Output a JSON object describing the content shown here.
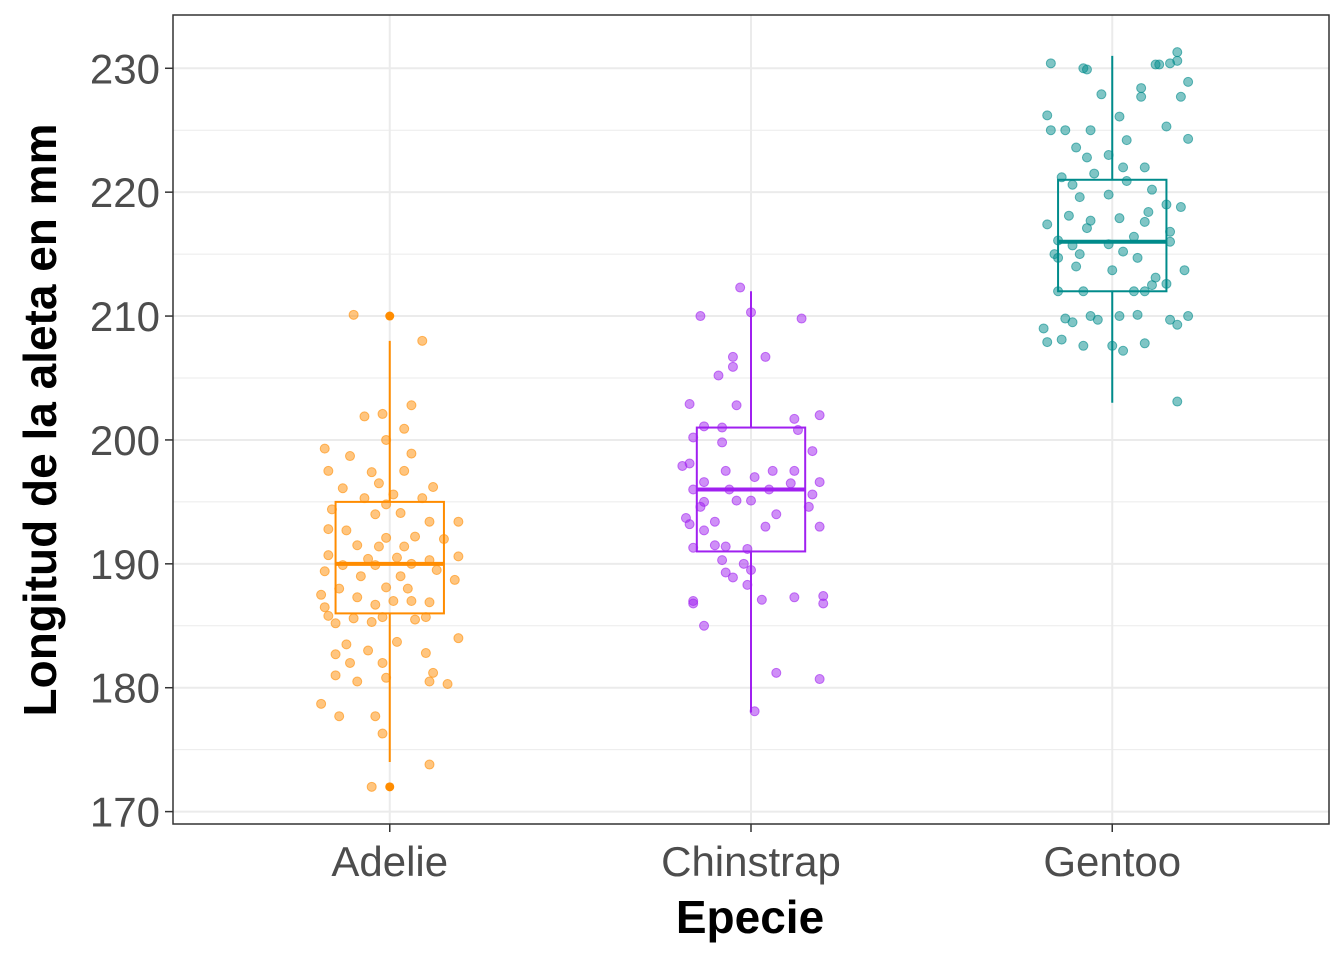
{
  "chart_data": {
    "type": "boxplot",
    "xlabel": "Epecie",
    "ylabel": "Longitud de la aleta en mm",
    "ylim": [
      169,
      234.3
    ],
    "yticks": [
      170,
      180,
      190,
      200,
      210,
      220,
      230
    ],
    "grid": true,
    "categories": [
      "Adelie",
      "Chinstrap",
      "Gentoo"
    ],
    "series": [
      {
        "category": "Adelie",
        "color": "#FF8C00",
        "box": {
          "min": 174,
          "q1": 186,
          "median": 190,
          "q3": 195,
          "max": 208
        },
        "outliers": [
          210,
          172
        ],
        "points": [
          [
            -0.1,
            210.1
          ],
          [
            0.09,
            208.0
          ],
          [
            0.06,
            202.8
          ],
          [
            -0.02,
            202.1
          ],
          [
            -0.07,
            201.9
          ],
          [
            0.04,
            200.9
          ],
          [
            -0.01,
            200.0
          ],
          [
            -0.18,
            199.3
          ],
          [
            0.06,
            198.9
          ],
          [
            -0.11,
            198.7
          ],
          [
            -0.17,
            197.5
          ],
          [
            -0.05,
            197.4
          ],
          [
            0.04,
            197.5
          ],
          [
            -0.13,
            196.1
          ],
          [
            -0.03,
            196.5
          ],
          [
            0.01,
            195.6
          ],
          [
            0.12,
            196.2
          ],
          [
            -0.07,
            195.3
          ],
          [
            0.09,
            195.3
          ],
          [
            -0.01,
            194.8
          ],
          [
            -0.16,
            194.4
          ],
          [
            -0.04,
            194.0
          ],
          [
            0.03,
            194.1
          ],
          [
            0.11,
            193.4
          ],
          [
            0.19,
            193.4
          ],
          [
            -0.17,
            192.8
          ],
          [
            -0.12,
            192.7
          ],
          [
            -0.01,
            192.1
          ],
          [
            0.07,
            192.2
          ],
          [
            0.15,
            192.0
          ],
          [
            -0.09,
            191.5
          ],
          [
            -0.03,
            191.4
          ],
          [
            0.04,
            191.4
          ],
          [
            -0.17,
            190.7
          ],
          [
            -0.06,
            190.4
          ],
          [
            0.02,
            190.5
          ],
          [
            0.11,
            190.3
          ],
          [
            0.19,
            190.6
          ],
          [
            -0.13,
            189.9
          ],
          [
            -0.04,
            189.9
          ],
          [
            0.06,
            190.0
          ],
          [
            0.13,
            189.5
          ],
          [
            -0.18,
            189.4
          ],
          [
            -0.08,
            189.0
          ],
          [
            0.03,
            189.0
          ],
          [
            0.18,
            188.7
          ],
          [
            -0.14,
            188.0
          ],
          [
            -0.01,
            188.1
          ],
          [
            0.05,
            188.0
          ],
          [
            -0.19,
            187.5
          ],
          [
            -0.09,
            187.3
          ],
          [
            0.01,
            187.0
          ],
          [
            0.06,
            187.0
          ],
          [
            -0.18,
            186.5
          ],
          [
            -0.04,
            186.7
          ],
          [
            0.11,
            186.9
          ],
          [
            -0.17,
            185.8
          ],
          [
            -0.1,
            185.6
          ],
          [
            -0.02,
            185.7
          ],
          [
            0.1,
            185.7
          ],
          [
            -0.15,
            185.2
          ],
          [
            -0.05,
            185.3
          ],
          [
            0.07,
            185.5
          ],
          [
            0.19,
            184.0
          ],
          [
            -0.12,
            183.5
          ],
          [
            0.02,
            183.7
          ],
          [
            -0.15,
            182.7
          ],
          [
            -0.06,
            183.0
          ],
          [
            0.1,
            182.8
          ],
          [
            -0.11,
            182.0
          ],
          [
            -0.02,
            182.0
          ],
          [
            0.12,
            181.2
          ],
          [
            -0.15,
            181.0
          ],
          [
            -0.01,
            180.8
          ],
          [
            0.11,
            180.5
          ],
          [
            -0.09,
            180.5
          ],
          [
            0.16,
            180.3
          ],
          [
            -0.19,
            178.7
          ],
          [
            -0.14,
            177.7
          ],
          [
            -0.04,
            177.7
          ],
          [
            -0.02,
            176.3
          ],
          [
            0.11,
            173.8
          ],
          [
            -0.05,
            172.0
          ]
        ]
      },
      {
        "category": "Chinstrap",
        "color": "#A020F0",
        "box": {
          "min": 178,
          "q1": 191,
          "median": 196,
          "q3": 201,
          "max": 212
        },
        "outliers": [],
        "points": [
          [
            -0.03,
            212.3
          ],
          [
            0.0,
            210.3
          ],
          [
            -0.14,
            210.0
          ],
          [
            0.14,
            209.8
          ],
          [
            -0.05,
            206.7
          ],
          [
            -0.05,
            205.9
          ],
          [
            0.04,
            206.7
          ],
          [
            -0.09,
            205.2
          ],
          [
            -0.17,
            202.9
          ],
          [
            -0.04,
            202.8
          ],
          [
            0.12,
            201.7
          ],
          [
            0.19,
            202.0
          ],
          [
            -0.13,
            201.1
          ],
          [
            -0.08,
            201.0
          ],
          [
            0.13,
            200.8
          ],
          [
            -0.16,
            200.2
          ],
          [
            -0.08,
            199.8
          ],
          [
            0.17,
            199.1
          ],
          [
            -0.17,
            198.1
          ],
          [
            -0.19,
            197.9
          ],
          [
            -0.07,
            197.5
          ],
          [
            0.06,
            197.5
          ],
          [
            -0.13,
            196.6
          ],
          [
            0.01,
            197.0
          ],
          [
            0.11,
            196.5
          ],
          [
            0.12,
            197.5
          ],
          [
            0.19,
            196.6
          ],
          [
            -0.16,
            196.0
          ],
          [
            -0.06,
            196.0
          ],
          [
            0.05,
            196.0
          ],
          [
            0.17,
            195.6
          ],
          [
            -0.13,
            195.0
          ],
          [
            -0.04,
            195.1
          ],
          [
            0.0,
            195.1
          ],
          [
            -0.14,
            194.6
          ],
          [
            0.16,
            194.6
          ],
          [
            -0.18,
            193.7
          ],
          [
            -0.1,
            193.4
          ],
          [
            0.07,
            194.0
          ],
          [
            -0.17,
            193.2
          ],
          [
            0.04,
            193.0
          ],
          [
            0.19,
            193.0
          ],
          [
            -0.13,
            192.7
          ],
          [
            -0.1,
            191.5
          ],
          [
            -0.16,
            191.3
          ],
          [
            -0.07,
            191.4
          ],
          [
            -0.01,
            191.2
          ],
          [
            -0.08,
            190.3
          ],
          [
            -0.02,
            190.0
          ],
          [
            -0.07,
            189.3
          ],
          [
            -0.05,
            188.9
          ],
          [
            0.0,
            189.5
          ],
          [
            -0.01,
            188.3
          ],
          [
            0.03,
            187.1
          ],
          [
            0.12,
            187.3
          ],
          [
            0.2,
            187.4
          ],
          [
            -0.16,
            187.0
          ],
          [
            -0.16,
            186.8
          ],
          [
            0.2,
            186.8
          ],
          [
            -0.13,
            185.0
          ],
          [
            0.07,
            181.2
          ],
          [
            0.19,
            180.7
          ],
          [
            0.01,
            178.1
          ]
        ]
      },
      {
        "category": "Gentoo",
        "color": "#008B8B",
        "box": {
          "min": 203,
          "q1": 212,
          "median": 216,
          "q3": 221,
          "max": 231
        },
        "outliers": [],
        "points": [
          [
            0.18,
            231.3
          ],
          [
            -0.17,
            230.4
          ],
          [
            0.13,
            230.3
          ],
          [
            0.12,
            230.3
          ],
          [
            0.16,
            230.4
          ],
          [
            -0.08,
            230.0
          ],
          [
            0.18,
            230.6
          ],
          [
            -0.07,
            229.9
          ],
          [
            0.21,
            228.9
          ],
          [
            0.08,
            228.4
          ],
          [
            -0.03,
            227.9
          ],
          [
            0.08,
            227.7
          ],
          [
            0.19,
            227.7
          ],
          [
            -0.18,
            226.2
          ],
          [
            0.02,
            226.1
          ],
          [
            -0.17,
            225.0
          ],
          [
            -0.13,
            225.0
          ],
          [
            0.15,
            225.3
          ],
          [
            -0.06,
            225.0
          ],
          [
            0.04,
            224.2
          ],
          [
            -0.1,
            223.6
          ],
          [
            0.21,
            224.3
          ],
          [
            -0.07,
            222.8
          ],
          [
            -0.01,
            223.0
          ],
          [
            -0.05,
            221.5
          ],
          [
            0.03,
            222.0
          ],
          [
            0.09,
            222.0
          ],
          [
            -0.14,
            221.2
          ],
          [
            -0.11,
            220.6
          ],
          [
            0.11,
            220.2
          ],
          [
            0.04,
            220.9
          ],
          [
            -0.09,
            219.6
          ],
          [
            -0.01,
            219.8
          ],
          [
            0.15,
            219.0
          ],
          [
            0.19,
            218.8
          ],
          [
            -0.12,
            218.1
          ],
          [
            -0.06,
            217.7
          ],
          [
            0.1,
            218.4
          ],
          [
            -0.18,
            217.4
          ],
          [
            -0.07,
            217.1
          ],
          [
            0.02,
            217.9
          ],
          [
            0.09,
            217.6
          ],
          [
            0.16,
            216.8
          ],
          [
            -0.15,
            216.1
          ],
          [
            -0.11,
            215.7
          ],
          [
            -0.01,
            215.8
          ],
          [
            0.06,
            216.4
          ],
          [
            0.16,
            216.0
          ],
          [
            -0.16,
            215.0
          ],
          [
            -0.09,
            215.0
          ],
          [
            0.03,
            215.2
          ],
          [
            0.07,
            214.7
          ],
          [
            0.2,
            213.7
          ],
          [
            -0.15,
            214.7
          ],
          [
            -0.1,
            214.0
          ],
          [
            0.0,
            213.7
          ],
          [
            0.12,
            213.1
          ],
          [
            0.15,
            212.6
          ],
          [
            0.09,
            212.0
          ],
          [
            -0.08,
            212.0
          ],
          [
            -0.15,
            212.0
          ],
          [
            0.06,
            212.0
          ],
          [
            0.11,
            212.5
          ],
          [
            0.21,
            210.0
          ],
          [
            -0.19,
            209.0
          ],
          [
            -0.13,
            209.8
          ],
          [
            -0.06,
            210.0
          ],
          [
            0.02,
            210.0
          ],
          [
            0.07,
            210.1
          ],
          [
            0.16,
            209.7
          ],
          [
            -0.11,
            209.5
          ],
          [
            -0.04,
            209.7
          ],
          [
            0.18,
            209.3
          ],
          [
            -0.14,
            208.1
          ],
          [
            -0.18,
            207.9
          ],
          [
            0.0,
            207.6
          ],
          [
            0.09,
            207.8
          ],
          [
            -0.08,
            207.6
          ],
          [
            0.03,
            207.2
          ],
          [
            0.18,
            203.1
          ]
        ]
      }
    ]
  }
}
